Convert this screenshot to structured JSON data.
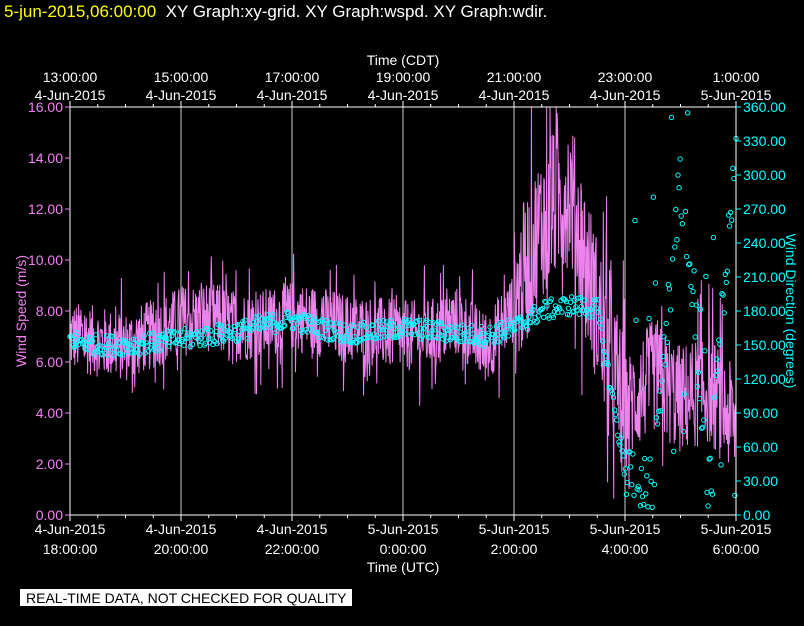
{
  "header": {
    "timestamp": "5-jun-2015,06:00:00",
    "graphs": "XY Graph:xy-grid.  XY Graph:wspd.  XY Graph:wdir."
  },
  "banner": "REAL-TIME DATA, NOT CHECKED FOR QUALITY",
  "colors": {
    "wspd": "#ee82ee",
    "wdir": "#00ffff",
    "grid": "#cccccc",
    "axis": "#ffffff",
    "header_timestamp": "#ffff00"
  },
  "chart_data": {
    "type": "line",
    "top_axis": {
      "title": "Time (CDT)",
      "ticks": [
        {
          "time": "13:00:00",
          "date": "4-Jun-2015"
        },
        {
          "time": "15:00:00",
          "date": "4-Jun-2015"
        },
        {
          "time": "17:00:00",
          "date": "4-Jun-2015"
        },
        {
          "time": "19:00:00",
          "date": "4-Jun-2015"
        },
        {
          "time": "21:00:00",
          "date": "4-Jun-2015"
        },
        {
          "time": "23:00:00",
          "date": "4-Jun-2015"
        },
        {
          "time": "1:00:00",
          "date": "5-Jun-2015"
        }
      ]
    },
    "bottom_axis": {
      "title": "Time (UTC)",
      "ticks": [
        {
          "date": "4-Jun-2015",
          "time": "18:00:00"
        },
        {
          "date": "4-Jun-2015",
          "time": "20:00:00"
        },
        {
          "date": "4-Jun-2015",
          "time": "22:00:00"
        },
        {
          "date": "5-Jun-2015",
          "time": "0:00:00"
        },
        {
          "date": "5-Jun-2015",
          "time": "2:00:00"
        },
        {
          "date": "5-Jun-2015",
          "time": "4:00:00"
        },
        {
          "date": "5-Jun-2015",
          "time": "6:00:00"
        }
      ],
      "range_utc": [
        "2015-06-04 18:00",
        "2015-06-05 06:00"
      ]
    },
    "left_axis": {
      "title": "Wind Speed (m/s)",
      "ylim": [
        0,
        16
      ],
      "ticks": [
        "0.00",
        "2.00",
        "4.00",
        "6.00",
        "8.00",
        "10.00",
        "12.00",
        "14.00",
        "16.00"
      ]
    },
    "right_axis": {
      "title": "Wind Direction (degrees)",
      "ylim": [
        0,
        360
      ],
      "ticks": [
        "0.00",
        "30.00",
        "60.00",
        "90.00",
        "120.00",
        "150.00",
        "180.00",
        "210.00",
        "240.00",
        "270.00",
        "300.00",
        "330.00",
        "360.00"
      ]
    },
    "grid": "vertical",
    "series": [
      {
        "type": "line",
        "axis": "left",
        "hours_since_18utc": [
          0,
          0.5,
          1,
          1.5,
          2,
          2.5,
          3,
          3.5,
          4,
          4.5,
          5,
          5.5,
          6,
          6.5,
          7,
          7.5,
          8,
          8.5,
          9,
          9.5,
          10,
          10.5,
          11,
          11.5,
          12
        ],
        "values": [
          7.0,
          6.8,
          6.6,
          7.1,
          7.6,
          7.8,
          7.4,
          7.5,
          7.8,
          7.6,
          7.3,
          7.2,
          7.0,
          7.1,
          7.6,
          6.5,
          8.2,
          11.5,
          12.8,
          8.0,
          4.0,
          5.5,
          4.5,
          5.0,
          3.5
        ]
      },
      {
        "type": "scatter",
        "axis": "right",
        "hours_since_18utc": [
          0,
          0.5,
          1,
          1.5,
          2,
          2.5,
          3,
          3.5,
          4,
          4.5,
          5,
          5.5,
          6,
          6.5,
          7,
          7.5,
          8,
          8.5,
          9,
          9.5,
          10,
          10.5,
          11,
          11.5,
          12
        ],
        "values": [
          155,
          150,
          150,
          152,
          155,
          158,
          162,
          168,
          172,
          165,
          160,
          162,
          165,
          163,
          160,
          158,
          165,
          180,
          185,
          182,
          40,
          25,
          300,
          20,
          330
        ]
      }
    ]
  }
}
